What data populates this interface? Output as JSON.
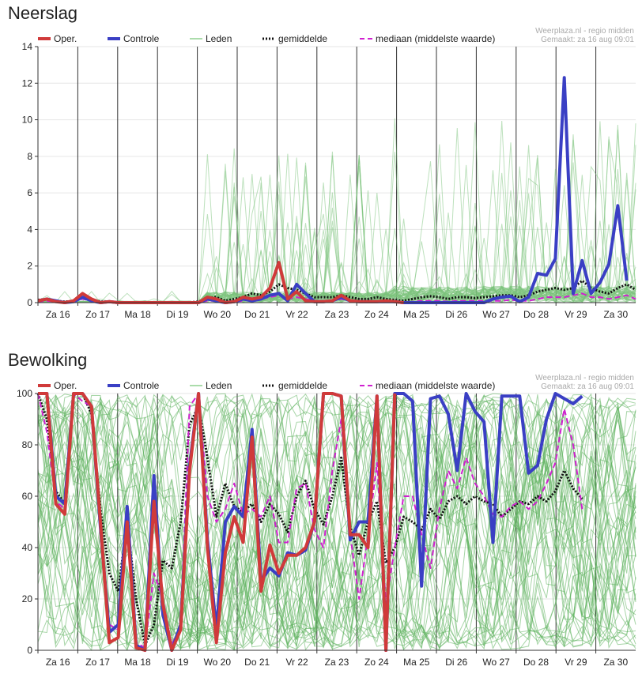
{
  "chart_data": [
    {
      "type": "line",
      "title": "Neerslag",
      "credit_line1": "Weerplaza.nl - regio midden",
      "credit_line2": "Gemaakt: za 16 aug 09:01",
      "legend": [
        "Oper.",
        "Controle",
        "Leden",
        "gemiddelde",
        "mediaan (middelste waarde)"
      ],
      "day_labels": [
        "Za 16",
        "Zo 17",
        "Ma 18",
        "Di 19",
        "Wo 20",
        "Do 21",
        "Vr 22",
        "Za 23",
        "Zo 24",
        "Ma 25",
        "Di 26",
        "Wo 27",
        "Do 28",
        "Vr 29",
        "Za 30"
      ],
      "ylim": [
        0,
        14
      ],
      "yticks": [
        0,
        2,
        4,
        6,
        8,
        10,
        12,
        14
      ],
      "grid": true,
      "series": [
        {
          "name": "Oper.",
          "color": "#d03a3a",
          "values": [
            0.1,
            0.2,
            0.05,
            0,
            0.1,
            0.5,
            0.2,
            0,
            0.05,
            0,
            0,
            0,
            0,
            0,
            0,
            0,
            0,
            0,
            0,
            0.3,
            0.2,
            0,
            0.05,
            0.3,
            0.2,
            0.3,
            0.8,
            2.2,
            0.2,
            0.6,
            0.1,
            0.05,
            0.05,
            0.1,
            0.4,
            0.1,
            0.05,
            0.05,
            0.05,
            0.1,
            0.05,
            0
          ]
        },
        {
          "name": "Controle",
          "color": "#3a3fc4",
          "values": [
            0.1,
            0.2,
            0.1,
            0,
            0.05,
            0.3,
            0.1,
            0,
            0.05,
            0,
            0,
            0,
            0,
            0,
            0,
            0,
            0,
            0,
            0,
            0.2,
            0.1,
            0,
            0.05,
            0.2,
            0.1,
            0.2,
            0.4,
            0.5,
            0.1,
            1.0,
            0.5,
            0.05,
            0.05,
            0.1,
            0.3,
            0.1,
            0.05,
            0.05,
            0.05,
            0.05,
            0.05,
            0,
            0,
            0,
            0,
            0,
            0,
            0,
            0,
            0,
            0,
            0.2,
            0.3,
            0.35,
            0.05,
            0.3,
            1.6,
            1.5,
            2.4,
            12.3,
            0.5,
            2.3,
            0.5,
            1.1,
            2.1,
            5.3,
            1.2
          ]
        },
        {
          "name": "gemiddelde",
          "color": "#111111",
          "values": [
            0.15,
            0.2,
            0.1,
            0.05,
            0.1,
            0.4,
            0.2,
            0.05,
            0.05,
            0.02,
            0.02,
            0.02,
            0.02,
            0.02,
            0.02,
            0.02,
            0.02,
            0.02,
            0.05,
            0.25,
            0.3,
            0.1,
            0.2,
            0.3,
            0.5,
            0.4,
            0.6,
            1.0,
            0.8,
            0.7,
            0.5,
            0.3,
            0.3,
            0.3,
            0.4,
            0.3,
            0.2,
            0.2,
            0.3,
            0.2,
            0.15,
            0.1,
            0.2,
            0.3,
            0.35,
            0.3,
            0.2,
            0.3,
            0.3,
            0.25,
            0.3,
            0.35,
            0.4,
            0.4,
            0.3,
            0.4,
            0.6,
            0.7,
            0.8,
            0.7,
            0.8,
            1.2,
            0.8,
            0.6,
            0.5,
            0.8,
            1.0,
            0.7
          ]
        },
        {
          "name": "mediaan (middelste waarde)",
          "color": "#d020d0",
          "values": [
            0.05,
            0.1,
            0.05,
            0,
            0.05,
            0.2,
            0.1,
            0,
            0,
            0,
            0,
            0,
            0,
            0,
            0,
            0,
            0,
            0,
            0,
            0.1,
            0.1,
            0,
            0.05,
            0.1,
            0.2,
            0.2,
            0.3,
            0.4,
            0.2,
            0.3,
            0.2,
            0.1,
            0.1,
            0.1,
            0.2,
            0.1,
            0.05,
            0.05,
            0.05,
            0.05,
            0.05,
            0.02,
            0.05,
            0.1,
            0.1,
            0.1,
            0.05,
            0.1,
            0.1,
            0.1,
            0.1,
            0.1,
            0.1,
            0.15,
            0.1,
            0.1,
            0.2,
            0.3,
            0.3,
            0.3,
            0.4,
            0.5,
            0.3,
            0.3,
            0.2,
            0.3,
            0.4,
            0.2
          ]
        }
      ]
    },
    {
      "type": "line",
      "title": "Bewolking",
      "credit_line1": "Weerplaza.nl - regio midden",
      "credit_line2": "Gemaakt: za 16 aug 09:01",
      "legend": [
        "Oper.",
        "Controle",
        "Leden",
        "gemiddelde",
        "mediaan (middelste waarde)"
      ],
      "day_labels": [
        "Za 16",
        "Zo 17",
        "Ma 18",
        "Di 19",
        "Wo 20",
        "Do 21",
        "Vr 22",
        "Za 23",
        "Zo 24",
        "Ma 25",
        "Di 26",
        "Wo 27",
        "Do 28",
        "Vr 29",
        "Za 30"
      ],
      "ylim": [
        0,
        100
      ],
      "yticks": [
        0,
        20,
        40,
        60,
        80,
        100
      ],
      "grid": true,
      "series": [
        {
          "name": "Oper.",
          "color": "#d03a3a",
          "values": [
            100,
            100,
            57,
            53,
            100,
            100,
            95,
            50,
            3,
            5,
            50,
            1,
            0,
            58,
            18,
            0,
            8,
            70,
            100,
            40,
            3,
            38,
            52,
            42,
            83,
            23,
            41,
            30,
            37,
            37,
            40,
            50,
            100,
            100,
            99,
            45,
            45,
            40,
            99,
            0,
            100
          ]
        },
        {
          "name": "Controle",
          "color": "#3a3fc4",
          "values": [
            100,
            100,
            60,
            57,
            100,
            100,
            95,
            48,
            7,
            10,
            56,
            2,
            0,
            68,
            14,
            0,
            10,
            72,
            100,
            43,
            8,
            50,
            56,
            52,
            86,
            27,
            32,
            29,
            38,
            37,
            39,
            50,
            100,
            100,
            99,
            43,
            50,
            50,
            99,
            0,
            100,
            100,
            97,
            25,
            98,
            99,
            92,
            70,
            100,
            93,
            89,
            42,
            99,
            99,
            99,
            69,
            72,
            90,
            100,
            98,
            96,
            99
          ]
        },
        {
          "name": "gemiddelde",
          "color": "#111111",
          "values": [
            100,
            90,
            62,
            57,
            100,
            100,
            92,
            55,
            30,
            23,
            50,
            20,
            2,
            10,
            35,
            32,
            50,
            88,
            95,
            75,
            52,
            65,
            56,
            54,
            57,
            50,
            57,
            53,
            46,
            60,
            66,
            55,
            49,
            60,
            75,
            48,
            37,
            50,
            58,
            34,
            40,
            52,
            50,
            47,
            55,
            51,
            58,
            60,
            57,
            60,
            58,
            57,
            52,
            55,
            58,
            57,
            60,
            58,
            62,
            70,
            63,
            59
          ]
        },
        {
          "name": "mediaan (middelste waarde)",
          "color": "#d020d0",
          "values": [
            100,
            85,
            58,
            55,
            100,
            97,
            95,
            45,
            10,
            8,
            48,
            3,
            1,
            30,
            20,
            2,
            10,
            95,
            100,
            60,
            50,
            55,
            65,
            53,
            55,
            52,
            60,
            42,
            42,
            63,
            65,
            47,
            40,
            70,
            90,
            45,
            20,
            45,
            73,
            18,
            40,
            60,
            60,
            45,
            32,
            55,
            70,
            63,
            75,
            65,
            60,
            53,
            52,
            56,
            58,
            55,
            58,
            65,
            73,
            94,
            80,
            55
          ]
        }
      ]
    }
  ]
}
